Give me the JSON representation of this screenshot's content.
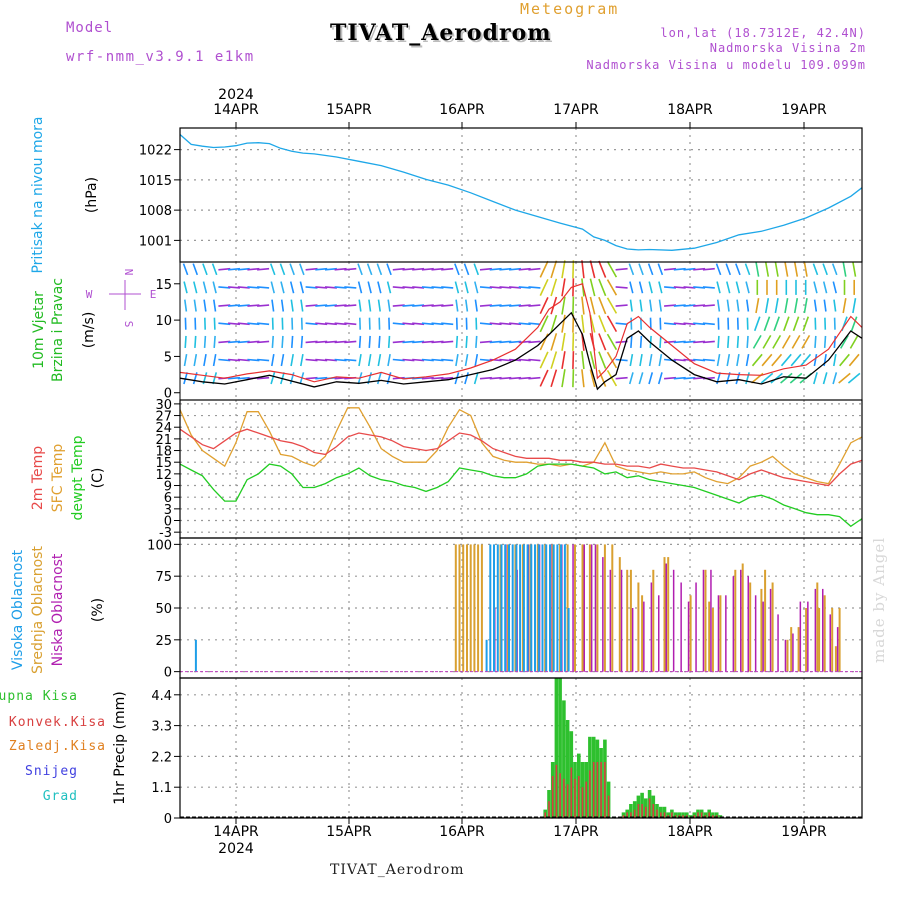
{
  "header": {
    "model_label": "Model",
    "model_name": "wrf-nmm_v3.9.1  e1km",
    "title": "TIVAT_Aerodrom",
    "subtitle": "Meteogram",
    "coords": "lon,lat (18.7312E, 42.4N)",
    "elevation": "Nadmorska Visina 2m",
    "model_elevation": "Nadmorska Visina u modelu 109.099m",
    "watermark": "made by Angel",
    "footer_station": "TIVAT_Aerodrom"
  },
  "colors": {
    "pressure": "#1ea7e8",
    "wind_speed": "#000000",
    "wind_gust": "#e83030",
    "temp_2m": "#e84a4a",
    "temp_sfc": "#e0a030",
    "dewpoint": "#22cc22",
    "cloud_high": "#1e9ee8",
    "cloud_mid": "#d9a030",
    "cloud_low": "#b01eb0",
    "precip_total": "#2ec02e",
    "precip_conv": "#d84040",
    "precip_snow": "#4040e0",
    "precip_grad": "#20c0c0",
    "label_purple": "#b050d0"
  },
  "time_axis": {
    "year_label": "2024",
    "days": [
      "14APR",
      "15APR",
      "16APR",
      "17APR",
      "18APR",
      "19APR"
    ]
  },
  "chart_data": [
    {
      "type": "line",
      "panel": "pressure",
      "ylabel_main": "Pritisak na nivou mora",
      "ylabel_unit": "(hPa)",
      "yticks": [
        1001,
        1008,
        1015,
        1022
      ],
      "ylim": [
        996,
        1027
      ],
      "x_hours": [
        0,
        3,
        6,
        9,
        12,
        15,
        18,
        21,
        24,
        27,
        30,
        33,
        36,
        42,
        48,
        54,
        60,
        66,
        72,
        78,
        84,
        90,
        96,
        102,
        108,
        111,
        114,
        117,
        120,
        123,
        126,
        132,
        138,
        144,
        150,
        156,
        162,
        168,
        174,
        180,
        183
      ],
      "values": [
        1025.5,
        1023.2,
        1022.8,
        1022.5,
        1022.6,
        1022.9,
        1023.5,
        1023.6,
        1023.4,
        1022.3,
        1021.6,
        1021.2,
        1021.0,
        1020.3,
        1019.3,
        1018.3,
        1016.8,
        1015.1,
        1013.8,
        1012.0,
        1010.0,
        1008.0,
        1006.5,
        1005.0,
        1003.6,
        1001.8,
        1001.0,
        999.8,
        999.0,
        998.8,
        998.9,
        998.7,
        999.2,
        1000.5,
        1002.3,
        1003.1,
        1004.5,
        1006.2,
        1008.5,
        1011.2,
        1013.2
      ],
      "grid": true
    },
    {
      "type": "line",
      "panel": "wind",
      "ylabel_main": "10m Vjetar",
      "ylabel_second": "Brzina i Pravac",
      "ylabel_unit": "(m/s)",
      "compass": {
        "n": "N",
        "s": "S",
        "e": "E",
        "w": "W"
      },
      "yticks": [
        0,
        5,
        10,
        15
      ],
      "ylim": [
        -1,
        18
      ],
      "x_hours": [
        0,
        6,
        12,
        18,
        24,
        30,
        36,
        42,
        48,
        54,
        60,
        66,
        72,
        78,
        84,
        90,
        96,
        99,
        102,
        105,
        108,
        110,
        112,
        114,
        117,
        120,
        123,
        126,
        132,
        138,
        144,
        150,
        156,
        162,
        168,
        174,
        180,
        183
      ],
      "speed": [
        2.0,
        1.5,
        1.2,
        1.8,
        2.4,
        1.6,
        0.8,
        1.5,
        1.3,
        1.7,
        1.2,
        1.5,
        1.8,
        2.5,
        3.2,
        4.5,
        6.5,
        8.0,
        9.5,
        11.0,
        8.0,
        4.0,
        0.5,
        1.5,
        2.5,
        7.5,
        8.5,
        7.0,
        4.5,
        2.5,
        1.5,
        1.8,
        1.2,
        2.2,
        2.0,
        4.5,
        8.5,
        7.5
      ],
      "gust": [
        2.8,
        2.4,
        2.0,
        2.6,
        3.0,
        2.5,
        1.5,
        2.2,
        2.0,
        2.8,
        1.9,
        2.2,
        2.6,
        3.4,
        4.5,
        6.0,
        9.0,
        11.5,
        12.5,
        14.5,
        15.0,
        11.0,
        2.0,
        3.0,
        5.0,
        9.5,
        10.5,
        9.0,
        6.5,
        4.0,
        2.7,
        2.5,
        2.4,
        3.3,
        3.8,
        6.0,
        10.5,
        9.0
      ],
      "grid": true
    },
    {
      "type": "line",
      "panel": "temperature",
      "ylabel_first": "2m Temp",
      "ylabel_second": "SFC Temp",
      "ylabel_third": "dewpt Temp",
      "ylabel_unit": "(C)",
      "yticks": [
        -3,
        0,
        3,
        6,
        9,
        12,
        15,
        18,
        21,
        24,
        27,
        30
      ],
      "ylim": [
        -4.5,
        31
      ],
      "x_hours": [
        0,
        3,
        6,
        9,
        12,
        15,
        18,
        21,
        24,
        27,
        30,
        33,
        36,
        39,
        42,
        45,
        48,
        51,
        54,
        57,
        60,
        63,
        66,
        69,
        72,
        75,
        78,
        81,
        84,
        87,
        90,
        93,
        96,
        99,
        102,
        105,
        108,
        111,
        114,
        117,
        120,
        123,
        126,
        129,
        132,
        135,
        138,
        141,
        144,
        147,
        150,
        153,
        156,
        159,
        162,
        165,
        168,
        171,
        174,
        177,
        180,
        183
      ],
      "t2m": [
        23.5,
        21.5,
        19.5,
        18.5,
        20.5,
        22.5,
        23.5,
        22.5,
        21.5,
        20.5,
        20.0,
        19.0,
        17.5,
        17.0,
        19.0,
        21.5,
        22.5,
        22.0,
        21.5,
        20.5,
        19.0,
        18.5,
        18.0,
        18.5,
        20.5,
        22.5,
        22.0,
        20.5,
        18.5,
        17.5,
        16.5,
        16.0,
        16.0,
        16.0,
        15.5,
        15.5,
        15.0,
        15.0,
        14.5,
        14.5,
        14.0,
        14.0,
        13.5,
        14.5,
        14.0,
        13.5,
        13.5,
        13.0,
        12.5,
        11.5,
        10.5,
        12.0,
        13.0,
        12.0,
        11.0,
        10.5,
        10.0,
        9.5,
        9.0,
        12.0,
        14.5,
        15.5
      ],
      "tsfc": [
        28.5,
        22.0,
        18.0,
        16.0,
        14.0,
        20.0,
        28.0,
        28.0,
        23.0,
        17.0,
        16.5,
        15.0,
        14.0,
        16.5,
        23.0,
        29.0,
        29.0,
        24.0,
        18.5,
        16.5,
        15.0,
        15.0,
        15.0,
        18.0,
        24.0,
        28.5,
        27.0,
        20.0,
        16.5,
        15.5,
        15.0,
        15.0,
        14.5,
        14.5,
        14.0,
        14.5,
        14.0,
        15.0,
        20.0,
        14.0,
        13.0,
        12.5,
        12.0,
        12.5,
        12.0,
        12.0,
        12.5,
        11.0,
        10.0,
        9.5,
        11.0,
        14.0,
        15.0,
        16.5,
        14.0,
        12.0,
        11.0,
        10.0,
        9.5,
        14.5,
        20.0,
        21.5
      ],
      "dewpt": [
        14.5,
        13.0,
        11.5,
        8.0,
        5.0,
        5.0,
        10.5,
        12.0,
        14.5,
        14.0,
        12.0,
        8.5,
        8.5,
        9.5,
        11.0,
        12.0,
        13.5,
        11.5,
        10.5,
        10.0,
        9.0,
        8.5,
        7.5,
        8.5,
        10.0,
        13.5,
        13.0,
        12.5,
        11.5,
        11.0,
        11.0,
        12.0,
        14.0,
        14.5,
        14.5,
        14.5,
        14.0,
        13.5,
        12.0,
        12.5,
        11.0,
        11.5,
        10.5,
        10.0,
        9.5,
        9.0,
        8.5,
        7.5,
        6.5,
        5.5,
        4.5,
        6.0,
        6.5,
        5.5,
        4.0,
        3.0,
        2.0,
        1.5,
        1.5,
        1.0,
        -1.5,
        0.5
      ],
      "grid": true
    },
    {
      "type": "bar",
      "panel": "clouds",
      "ylabel_first": "Visoka Oblacnost",
      "ylabel_second": "Srednja Oblacnost",
      "ylabel_third": "Niska Oblacnost",
      "ylabel_unit": "(%)",
      "yticks": [
        0,
        25,
        50,
        75,
        100
      ],
      "ylim": [
        -5,
        105
      ],
      "high": {
        "x_hours": [
          4,
          82,
          83,
          84,
          85,
          86,
          87,
          88,
          89,
          90,
          91,
          92,
          93,
          94,
          95,
          96,
          97,
          98,
          99,
          100,
          101,
          102,
          103,
          104
        ],
        "values": [
          25,
          25,
          100,
          100,
          100,
          100,
          100,
          100,
          100,
          100,
          100,
          100,
          100,
          100,
          100,
          100,
          100,
          100,
          100,
          100,
          100,
          100,
          100,
          50
        ]
      },
      "mid": {
        "x_hours": [
          74,
          75,
          76,
          77,
          78,
          79,
          80,
          81,
          86,
          88,
          90,
          92,
          94,
          96,
          98,
          100,
          102,
          104,
          106,
          108,
          110,
          112,
          114,
          116,
          118,
          120,
          121,
          123,
          124,
          127,
          130,
          131,
          137,
          141,
          142,
          143,
          145,
          149,
          151,
          153,
          156,
          157,
          159,
          163,
          164,
          166,
          168,
          171,
          171.5,
          173,
          175,
          176,
          177
        ],
        "values": [
          100,
          100,
          100,
          100,
          100,
          100,
          100,
          100,
          100,
          100,
          100,
          100,
          100,
          100,
          100,
          100,
          100,
          100,
          100,
          100,
          100,
          100,
          100,
          100,
          90,
          80,
          80,
          70,
          60,
          80,
          90,
          90,
          60,
          80,
          55,
          50,
          60,
          80,
          85,
          70,
          65,
          80,
          70,
          25,
          35,
          35,
          50,
          70,
          50,
          60,
          50,
          20,
          50
        ]
      },
      "low": {
        "x_hours": [
          84,
          87,
          90,
          93,
          96,
          99,
          102,
          105,
          108,
          110,
          111,
          113,
          115,
          118,
          121,
          124,
          126,
          128,
          130,
          132,
          134,
          136,
          138,
          140,
          142,
          144,
          146,
          148,
          150,
          152,
          154,
          156,
          158,
          160,
          162,
          164,
          166,
          168,
          170,
          172,
          174,
          176
        ],
        "values": [
          50,
          100,
          80,
          100,
          100,
          100,
          100,
          100,
          100,
          100,
          100,
          90,
          80,
          80,
          50,
          55,
          70,
          60,
          85,
          80,
          70,
          55,
          70,
          80,
          80,
          60,
          60,
          75,
          80,
          75,
          60,
          55,
          65,
          45,
          25,
          30,
          55,
          55,
          65,
          65,
          45,
          35
        ]
      },
      "grid": true
    },
    {
      "type": "bar",
      "panel": "precipitation",
      "legend": [
        "Ukupna Kisa",
        "Konvek.Kisa",
        "Zaledj.Kisa",
        "Snijeg",
        "Grad"
      ],
      "ylabel_unit": "1hr Precip (mm)",
      "yticks": [
        0,
        1.1,
        2.2,
        3.3,
        4.4
      ],
      "ylim": [
        0,
        5.0
      ],
      "x_hours": [
        98,
        99,
        100,
        101,
        102,
        103,
        104,
        105,
        106,
        107,
        108,
        109,
        110,
        111,
        112,
        113,
        114,
        115,
        116,
        117,
        118,
        119,
        120,
        121,
        122,
        123,
        124,
        125,
        126,
        127,
        128,
        129,
        130,
        131,
        132,
        133,
        134,
        135,
        136,
        137,
        138,
        139,
        140,
        141,
        142,
        143,
        144,
        145,
        146,
        147,
        148,
        149,
        150,
        151,
        152,
        153,
        154,
        155,
        156,
        157,
        158
      ],
      "total": [
        0.3,
        1.0,
        2.0,
        5.0,
        5.0,
        4.2,
        3.5,
        3.1,
        2.0,
        2.3,
        2.0,
        2.0,
        2.9,
        2.9,
        2.8,
        2.5,
        2.8,
        1.3,
        0.0,
        0.0,
        0.0,
        0.2,
        0.3,
        0.5,
        0.6,
        0.8,
        0.9,
        0.7,
        1.0,
        0.8,
        0.5,
        0.4,
        0.4,
        0.2,
        0.3,
        0.2,
        0.2,
        0.2,
        0.2,
        0.1,
        0.2,
        0.3,
        0.3,
        0.2,
        0.3,
        0.2,
        0.2,
        0.1,
        0.0,
        0.0,
        0.0,
        0.0,
        0.0,
        0.0,
        0.0,
        0.0,
        0.0,
        0.0,
        0.0,
        0.0,
        0.0
      ],
      "convective": [
        0.2,
        0.6,
        1.5,
        1.9,
        1.6,
        1.4,
        1.2,
        1.8,
        1.4,
        1.5,
        1.1,
        1.3,
        1.7,
        2.0,
        2.0,
        2.0,
        2.0,
        0.8,
        0.0,
        0.0,
        0.0,
        0.1,
        0.2,
        0.2,
        0.3,
        0.5,
        0.5,
        0.4,
        0.7,
        0.5,
        0.3,
        0.2,
        0.2,
        0.1,
        0.2,
        0.1,
        0.1,
        0.1,
        0.1,
        0.05,
        0.1,
        0.2,
        0.2,
        0.1,
        0.2,
        0.1,
        0.1,
        0.05,
        0.0,
        0.0,
        0.0,
        0.0,
        0.0,
        0.0,
        0.0,
        0.0,
        0.0,
        0.0,
        0.0,
        0.0,
        0.0
      ],
      "grid": true
    }
  ]
}
